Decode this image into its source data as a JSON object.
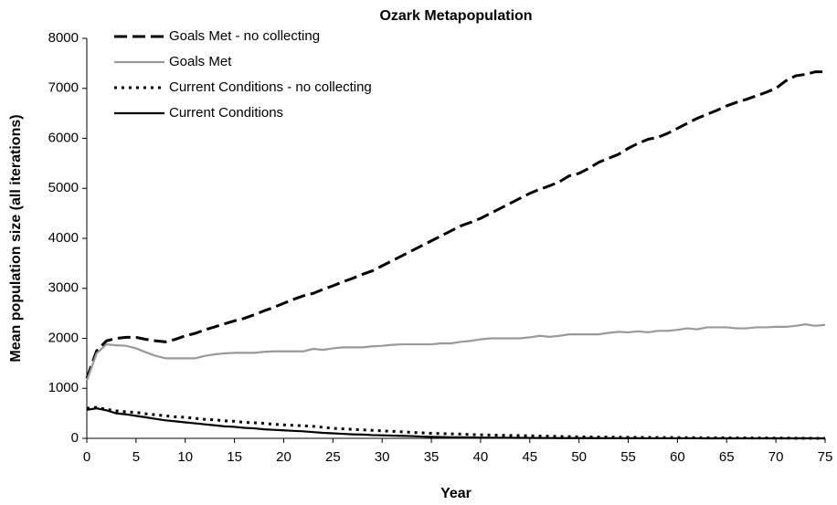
{
  "chart_data": {
    "type": "line",
    "title": "Ozark Metapopulation",
    "x_label": "Year",
    "y_label": "Mean population size (all iterations)",
    "x": [
      0,
      1,
      2,
      3,
      4,
      5,
      6,
      7,
      8,
      9,
      10,
      11,
      12,
      13,
      14,
      15,
      16,
      17,
      18,
      19,
      20,
      21,
      22,
      23,
      24,
      25,
      26,
      27,
      28,
      29,
      30,
      31,
      32,
      33,
      34,
      35,
      36,
      37,
      38,
      39,
      40,
      41,
      42,
      43,
      44,
      45,
      46,
      47,
      48,
      49,
      50,
      51,
      52,
      53,
      54,
      55,
      56,
      57,
      58,
      59,
      60,
      61,
      62,
      63,
      64,
      65,
      66,
      67,
      68,
      69,
      70,
      71,
      72,
      73,
      74,
      75
    ],
    "series": [
      {
        "name": "Goals Met - no collecting",
        "color": "#000000",
        "line_style": "dashed",
        "values": [
          1200,
          1750,
          1950,
          2000,
          2020,
          2020,
          1980,
          1950,
          1930,
          1980,
          2050,
          2100,
          2170,
          2230,
          2290,
          2350,
          2400,
          2470,
          2550,
          2620,
          2700,
          2780,
          2850,
          2900,
          2980,
          3050,
          3130,
          3200,
          3280,
          3350,
          3450,
          3550,
          3650,
          3750,
          3850,
          3950,
          4050,
          4150,
          4250,
          4320,
          4400,
          4500,
          4600,
          4700,
          4800,
          4900,
          4980,
          5050,
          5130,
          5250,
          5300,
          5400,
          5520,
          5600,
          5680,
          5800,
          5900,
          5980,
          6020,
          6100,
          6200,
          6300,
          6400,
          6480,
          6560,
          6650,
          6720,
          6780,
          6850,
          6920,
          7000,
          7150,
          7250,
          7280,
          7330,
          7330
        ]
      },
      {
        "name": "Goals Met",
        "color": "#999999",
        "line_style": "solid",
        "values": [
          1150,
          1700,
          1880,
          1860,
          1850,
          1800,
          1720,
          1650,
          1600,
          1600,
          1600,
          1600,
          1650,
          1680,
          1700,
          1710,
          1710,
          1710,
          1730,
          1740,
          1740,
          1740,
          1740,
          1790,
          1770,
          1800,
          1820,
          1820,
          1820,
          1840,
          1850,
          1870,
          1880,
          1880,
          1880,
          1880,
          1900,
          1900,
          1930,
          1950,
          1980,
          2000,
          2000,
          2000,
          2000,
          2020,
          2050,
          2030,
          2050,
          2080,
          2080,
          2080,
          2080,
          2110,
          2130,
          2120,
          2140,
          2120,
          2150,
          2150,
          2170,
          2200,
          2180,
          2220,
          2220,
          2220,
          2200,
          2200,
          2220,
          2220,
          2230,
          2230,
          2250,
          2280,
          2250,
          2270
        ]
      },
      {
        "name": "Current Conditions - no collecting",
        "color": "#000000",
        "line_style": "dotted",
        "values": [
          600,
          620,
          580,
          550,
          530,
          520,
          490,
          470,
          450,
          430,
          420,
          400,
          380,
          370,
          350,
          340,
          320,
          310,
          300,
          280,
          270,
          260,
          250,
          240,
          220,
          200,
          190,
          180,
          170,
          160,
          150,
          140,
          130,
          120,
          110,
          100,
          95,
          90,
          85,
          75,
          70,
          65,
          60,
          58,
          55,
          50,
          45,
          42,
          38,
          34,
          30,
          28,
          26,
          24,
          22,
          20,
          19,
          18,
          17,
          16,
          15,
          14,
          13,
          12,
          11,
          10,
          9,
          8,
          7,
          6,
          5,
          4,
          3,
          2,
          1,
          0
        ]
      },
      {
        "name": "Current Conditions",
        "color": "#000000",
        "line_style": "solid",
        "values": [
          570,
          600,
          560,
          500,
          480,
          450,
          420,
          390,
          360,
          340,
          320,
          300,
          280,
          260,
          240,
          230,
          210,
          200,
          180,
          170,
          160,
          150,
          140,
          125,
          110,
          100,
          90,
          80,
          75,
          65,
          60,
          55,
          50,
          45,
          35,
          30,
          25,
          22,
          20,
          18,
          15,
          13,
          12,
          10,
          9,
          8,
          7,
          6,
          5,
          5,
          4,
          4,
          3,
          3,
          2,
          2,
          2,
          1,
          1,
          1,
          1,
          1,
          1,
          0,
          0,
          0,
          0,
          0,
          0,
          0,
          0,
          0,
          0,
          0,
          0,
          0
        ]
      }
    ],
    "xlim": [
      0,
      75
    ],
    "xticks": [
      0,
      5,
      10,
      15,
      20,
      25,
      30,
      35,
      40,
      45,
      50,
      55,
      60,
      65,
      70,
      75
    ],
    "ylim": [
      0,
      8000
    ],
    "yticks": [
      0,
      1000,
      2000,
      3000,
      4000,
      5000,
      6000,
      7000,
      8000
    ],
    "grid": false,
    "legend": "upper left"
  }
}
